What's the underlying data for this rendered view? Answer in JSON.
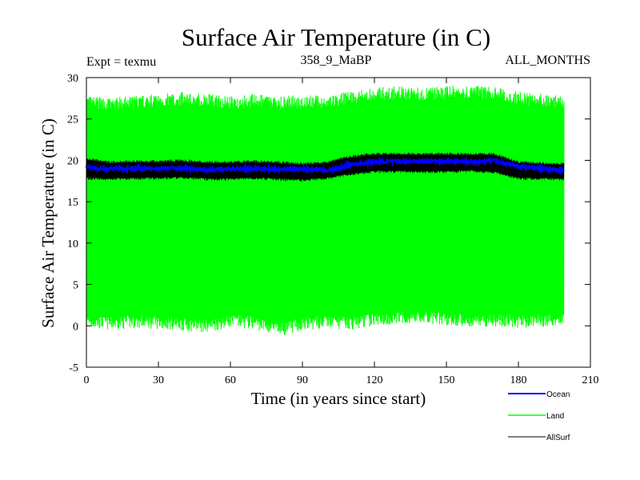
{
  "chart_data": {
    "type": "line",
    "title": "Surface Air Temperature (in C)",
    "subtitle_left": "Expt = texmu",
    "subtitle_center": "358_9_MaBP",
    "subtitle_right": "ALL_MONTHS",
    "xlabel": "Time (in years since start)",
    "ylabel": "Surface Air Temperature (in C)",
    "xlim": [
      0,
      210
    ],
    "ylim": [
      -5,
      30
    ],
    "x_ticks": [
      0,
      30,
      60,
      90,
      120,
      150,
      180,
      210
    ],
    "y_ticks": [
      -5,
      0,
      5,
      10,
      15,
      20,
      25,
      30
    ],
    "x_tick_labels": [
      "0",
      "30",
      "60",
      "90",
      "120",
      "150",
      "180",
      "210"
    ],
    "y_tick_labels": [
      "-5",
      "0",
      "5",
      "10",
      "15",
      "20",
      "25",
      "30"
    ],
    "legend_position": "bottom-right",
    "series": [
      {
        "name": "Land",
        "color": "#00ff00",
        "description_monthly_range": "seasonal cycle",
        "years": [
          0,
          10,
          20,
          30,
          40,
          50,
          60,
          70,
          80,
          90,
          100,
          110,
          120,
          130,
          140,
          150,
          160,
          170,
          180,
          199
        ],
        "annual_max": [
          27.0,
          26.8,
          27.0,
          27.2,
          27.5,
          27.3,
          27.0,
          27.2,
          27.0,
          27.1,
          27.0,
          27.6,
          28.0,
          28.2,
          28.0,
          28.2,
          28.3,
          28.1,
          27.5,
          27.0
        ],
        "annual_min": [
          0.5,
          0.3,
          0.5,
          0.4,
          0.2,
          0.0,
          0.6,
          0.4,
          -0.5,
          0.2,
          0.5,
          0.3,
          0.8,
          0.9,
          1.0,
          0.8,
          0.6,
          0.7,
          0.5,
          0.8
        ]
      },
      {
        "name": "AllSurf",
        "color": "#000000",
        "years": [
          0,
          10,
          20,
          30,
          40,
          50,
          60,
          70,
          80,
          90,
          100,
          110,
          120,
          130,
          140,
          150,
          160,
          170,
          180,
          199
        ],
        "annual_max": [
          20.2,
          19.8,
          19.9,
          19.9,
          20.0,
          19.8,
          19.8,
          19.9,
          19.8,
          19.6,
          19.8,
          20.5,
          20.8,
          20.8,
          20.8,
          20.8,
          20.8,
          20.8,
          19.8,
          19.6
        ],
        "annual_min": [
          17.8,
          17.7,
          17.8,
          17.8,
          17.9,
          17.7,
          17.7,
          17.8,
          17.7,
          17.6,
          17.8,
          18.3,
          18.6,
          18.6,
          18.6,
          18.6,
          18.7,
          18.5,
          17.8,
          17.7
        ]
      },
      {
        "name": "Ocean",
        "color": "#0000ff",
        "years": [
          0,
          5,
          10,
          20,
          30,
          40,
          50,
          60,
          70,
          80,
          90,
          100,
          105,
          110,
          120,
          130,
          140,
          150,
          160,
          170,
          180,
          190,
          199
        ],
        "values": [
          19.2,
          19.0,
          19.0,
          19.0,
          19.0,
          19.1,
          18.8,
          19.0,
          19.0,
          18.9,
          19.0,
          18.8,
          19.0,
          19.5,
          19.8,
          19.9,
          19.9,
          19.9,
          19.8,
          20.0,
          19.3,
          19.0,
          18.8
        ]
      }
    ]
  }
}
